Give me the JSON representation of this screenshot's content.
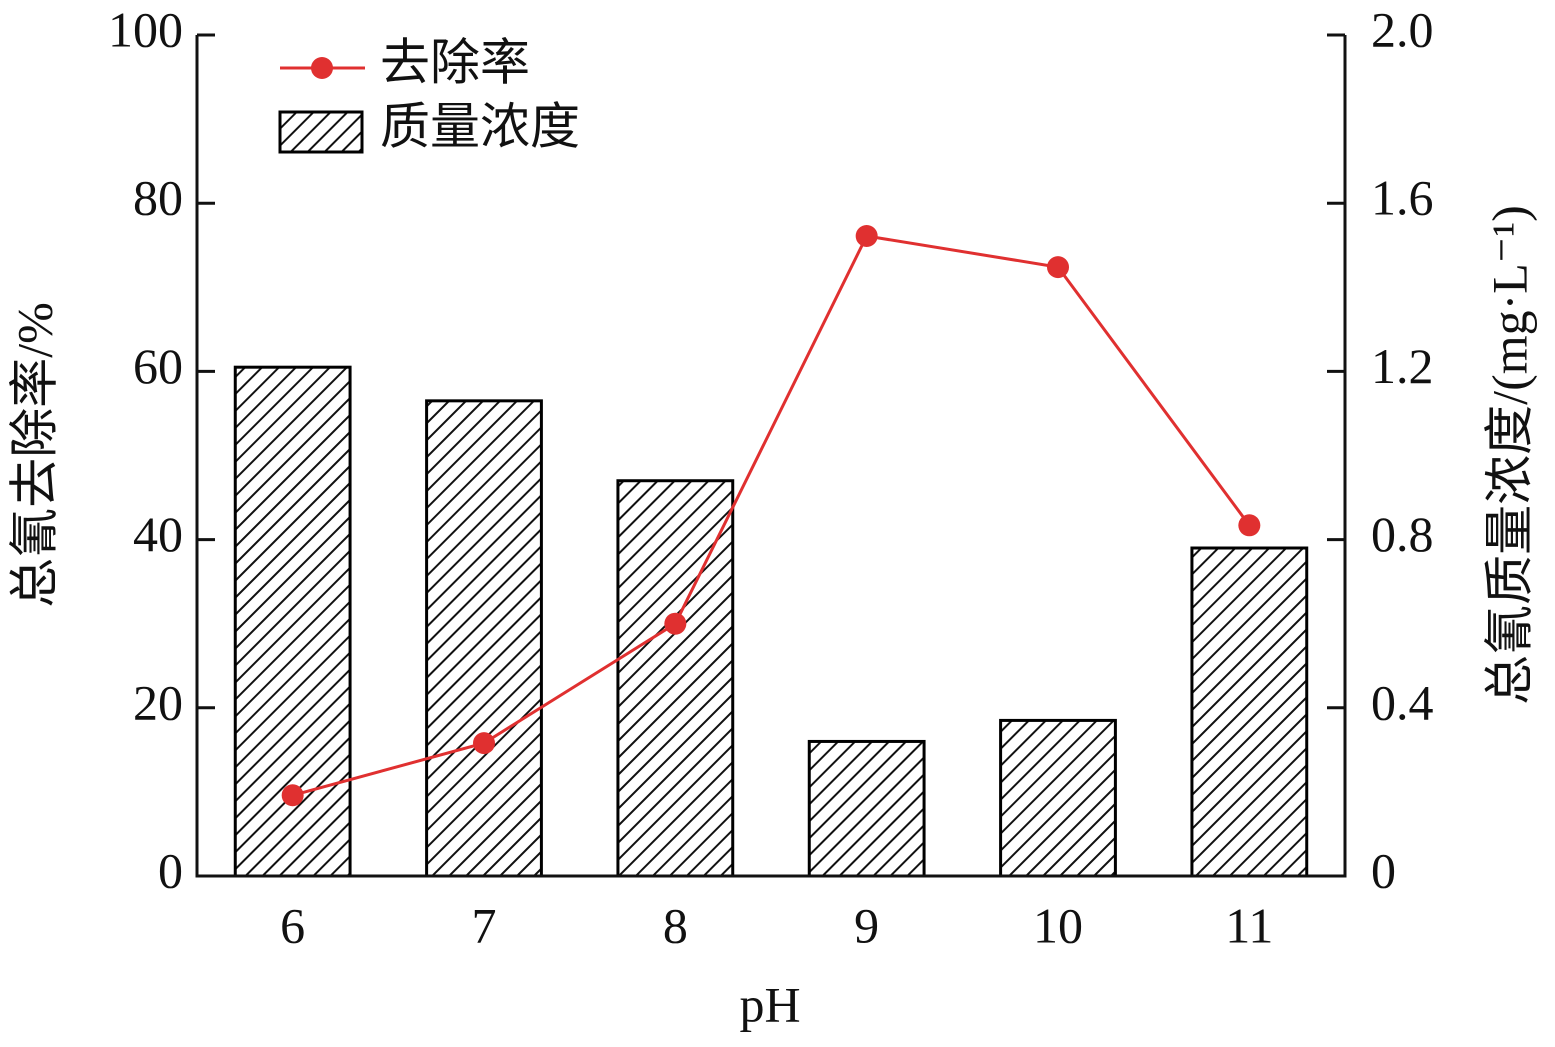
{
  "chart_data": {
    "type": "bar",
    "x_label": "pH",
    "y_label": "总氰去除率/%",
    "y2_label": "总氰质量浓度/(mg·L⁻¹)",
    "categories": [
      "6",
      "7",
      "8",
      "9",
      "10",
      "11"
    ],
    "series": [
      {
        "name": "去除率",
        "type": "line",
        "axis": "y",
        "color": "#e03030",
        "values": [
          9.6,
          15.8,
          30,
          76.1,
          72.4,
          41.7
        ]
      },
      {
        "name": "质量浓度",
        "type": "bar",
        "axis": "y2",
        "color": "#000000",
        "hatch": true,
        "values": [
          1.21,
          1.13,
          0.94,
          0.32,
          0.37,
          0.78
        ]
      }
    ],
    "ylim": [
      0,
      100
    ],
    "yticks": [
      0,
      20,
      40,
      60,
      80,
      100
    ],
    "y2lim": [
      0,
      2
    ],
    "y2ticks": [
      0,
      0.4,
      0.8,
      1.2,
      1.6,
      {
        "value": 2,
        "label": "2.0"
      }
    ],
    "legend": "upper left",
    "grid": false
  }
}
